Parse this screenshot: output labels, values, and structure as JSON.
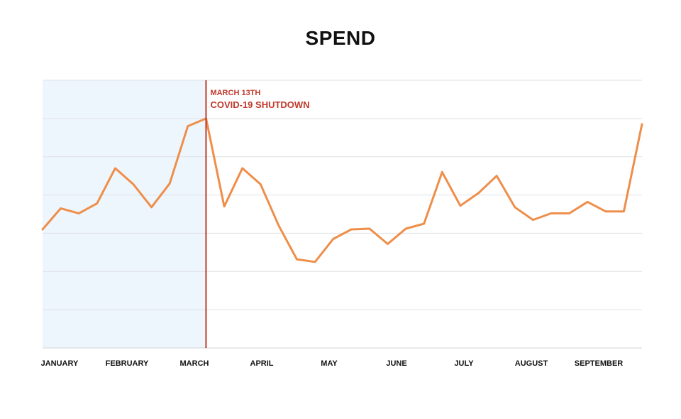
{
  "chart_data": {
    "type": "line",
    "title": "SPEND",
    "xlabel": "",
    "ylabel": "",
    "x_tick_labels": [
      "JANUARY",
      "FEBRUARY",
      "MARCH",
      "APRIL",
      "MAY",
      "JUNE",
      "JULY",
      "AUGUST",
      "SEPTEMBER"
    ],
    "grid": true,
    "y_gridline_count": 8,
    "ylim": [
      0,
      7
    ],
    "series": [
      {
        "values": [
          3.1,
          3.65,
          3.52,
          3.78,
          4.7,
          4.28,
          3.68,
          4.3,
          5.8,
          6.0,
          3.7,
          4.7,
          4.28,
          3.2,
          2.32,
          2.25,
          2.85,
          3.1,
          3.12,
          2.72,
          3.12,
          3.25,
          4.6,
          3.72,
          4.05,
          4.5,
          3.68,
          3.35,
          3.52,
          3.52,
          3.82,
          3.57,
          3.57,
          5.85
        ]
      }
    ],
    "line_color": "#ee8e4a",
    "shaded_region": {
      "from_index": 0,
      "to_index": 9,
      "color": "#eef6fd"
    },
    "annotation": {
      "at_index": 9,
      "line_color": "#c0392b",
      "date_label": "MARCH 13TH",
      "event_label": "COVID-19 SHUTDOWN"
    }
  }
}
